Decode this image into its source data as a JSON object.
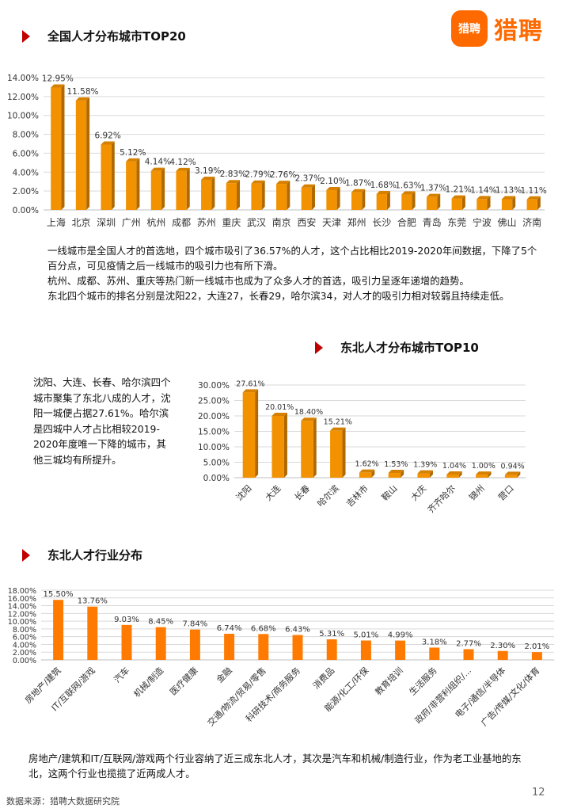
{
  "header": {
    "logo_badge": "猎聘",
    "logo_text": "猎聘"
  },
  "section1": {
    "title": "全国人才分布城市TOP20",
    "paragraphs": [
      "一线城市是全国人才的首选地，四个城市吸引了36.57%的人才，这个占比相比2019-2020年间数据，下降了5个百分点，可见疫情之后一线城市的吸引力也有所下滑。",
      "杭州、成都、苏州、重庆等热门新一线城市也成为了众多人才的首选，吸引力呈逐年递增的趋势。",
      "东北四个城市的排名分别是沈阳22，大连27，长春29，哈尔滨34，对人才的吸引力相对较弱且持续走低。"
    ]
  },
  "section2": {
    "title": "东北人才分布城市TOP10",
    "side_text": "沈阳、大连、长春、哈尔滨四个城市聚集了东北八成的人才，沈阳一城便占据27.61%。哈尔滨是四城中人才占比相较2019-2020年度唯一下降的城市，其他三城均有所提升。"
  },
  "section3": {
    "title": "东北人才行业分布",
    "paragraph": "房地产/建筑和IT/互联网/游戏两个行业容纳了近三成东北人才，其次是汽车和机械/制造行业，作为老工业基地的东北，这两个行业也揽揽了近两成人才。"
  },
  "footer": {
    "source": "数据来源：猎聘大数据研究院",
    "page_number": "12"
  },
  "chart_data": [
    {
      "type": "bar",
      "title": "全国人才分布城市TOP20",
      "categories": [
        "上海",
        "北京",
        "深圳",
        "广州",
        "杭州",
        "成都",
        "苏州",
        "重庆",
        "武汉",
        "南京",
        "西安",
        "天津",
        "郑州",
        "长沙",
        "合肥",
        "青岛",
        "东莞",
        "宁波",
        "佛山",
        "济南"
      ],
      "values": [
        12.95,
        11.58,
        6.92,
        5.12,
        4.14,
        4.12,
        3.19,
        2.83,
        2.79,
        2.76,
        2.37,
        2.1,
        1.87,
        1.68,
        1.63,
        1.37,
        1.21,
        1.14,
        1.13,
        1.11
      ],
      "value_labels": [
        "12.95%",
        "11.58%",
        "6.92%",
        "5.12%",
        "4.14%",
        "4.12%",
        "3.19%",
        "2.83%",
        "2.79%",
        "2.76%",
        "2.37%",
        "2.10%",
        "1.87%",
        "1.68%",
        "1.63%",
        "1.37%",
        "1.21%",
        "1.14%",
        "1.13%",
        "1.11%"
      ],
      "y_ticks": [
        "0.00%",
        "2.00%",
        "4.00%",
        "6.00%",
        "8.00%",
        "10.00%",
        "12.00%",
        "14.00%"
      ],
      "ylim": [
        0,
        14
      ],
      "grid": true,
      "bar_color": "#f39200"
    },
    {
      "type": "bar",
      "title": "东北人才分布城市TOP10",
      "categories": [
        "沈阳",
        "大连",
        "长春",
        "哈尔滨",
        "吉林市",
        "鞍山",
        "大庆",
        "齐齐哈尔",
        "锦州",
        "营口"
      ],
      "values": [
        27.61,
        20.01,
        18.4,
        15.21,
        1.62,
        1.53,
        1.39,
        1.04,
        1.0,
        0.94
      ],
      "value_labels": [
        "27.61%",
        "20.01%",
        "18.40%",
        "15.21%",
        "1.62%",
        "1.53%",
        "1.39%",
        "1.04%",
        "1.00%",
        "0.94%"
      ],
      "y_ticks": [
        "0.00%",
        "5.00%",
        "10.00%",
        "15.00%",
        "20.00%",
        "25.00%",
        "30.00%"
      ],
      "ylim": [
        0,
        30
      ],
      "grid": true,
      "bar_color": "#f39200"
    },
    {
      "type": "bar",
      "title": "东北人才行业分布",
      "categories": [
        "房地产/建筑",
        "IT/互联网/游戏",
        "汽车",
        "机械/制造",
        "医疗健康",
        "金融",
        "交通/物流/贸易/零售",
        "科研技术/商务服务",
        "消费品",
        "能源/化工/环保",
        "教育培训",
        "生活服务",
        "政府/非营利组织/...",
        "电子/通信/半导体",
        "广告/传媒/文化/体育"
      ],
      "values": [
        15.5,
        13.76,
        9.03,
        8.45,
        7.84,
        6.74,
        6.68,
        6.43,
        5.31,
        5.01,
        4.99,
        3.18,
        2.77,
        2.3,
        2.01
      ],
      "value_labels": [
        "15.50%",
        "13.76%",
        "9.03%",
        "8.45%",
        "7.84%",
        "6.74%",
        "6.68%",
        "6.43%",
        "5.31%",
        "5.01%",
        "4.99%",
        "3.18%",
        "2.77%",
        "2.30%",
        "2.01%"
      ],
      "y_ticks": [
        "0.00%",
        "2.00%",
        "4.00%",
        "6.00%",
        "8.00%",
        "10.00%",
        "12.00%",
        "14.00%",
        "16.00%",
        "18.00%"
      ],
      "ylim": [
        0,
        18
      ],
      "grid": true,
      "bar_color": "#ff7a00"
    }
  ]
}
